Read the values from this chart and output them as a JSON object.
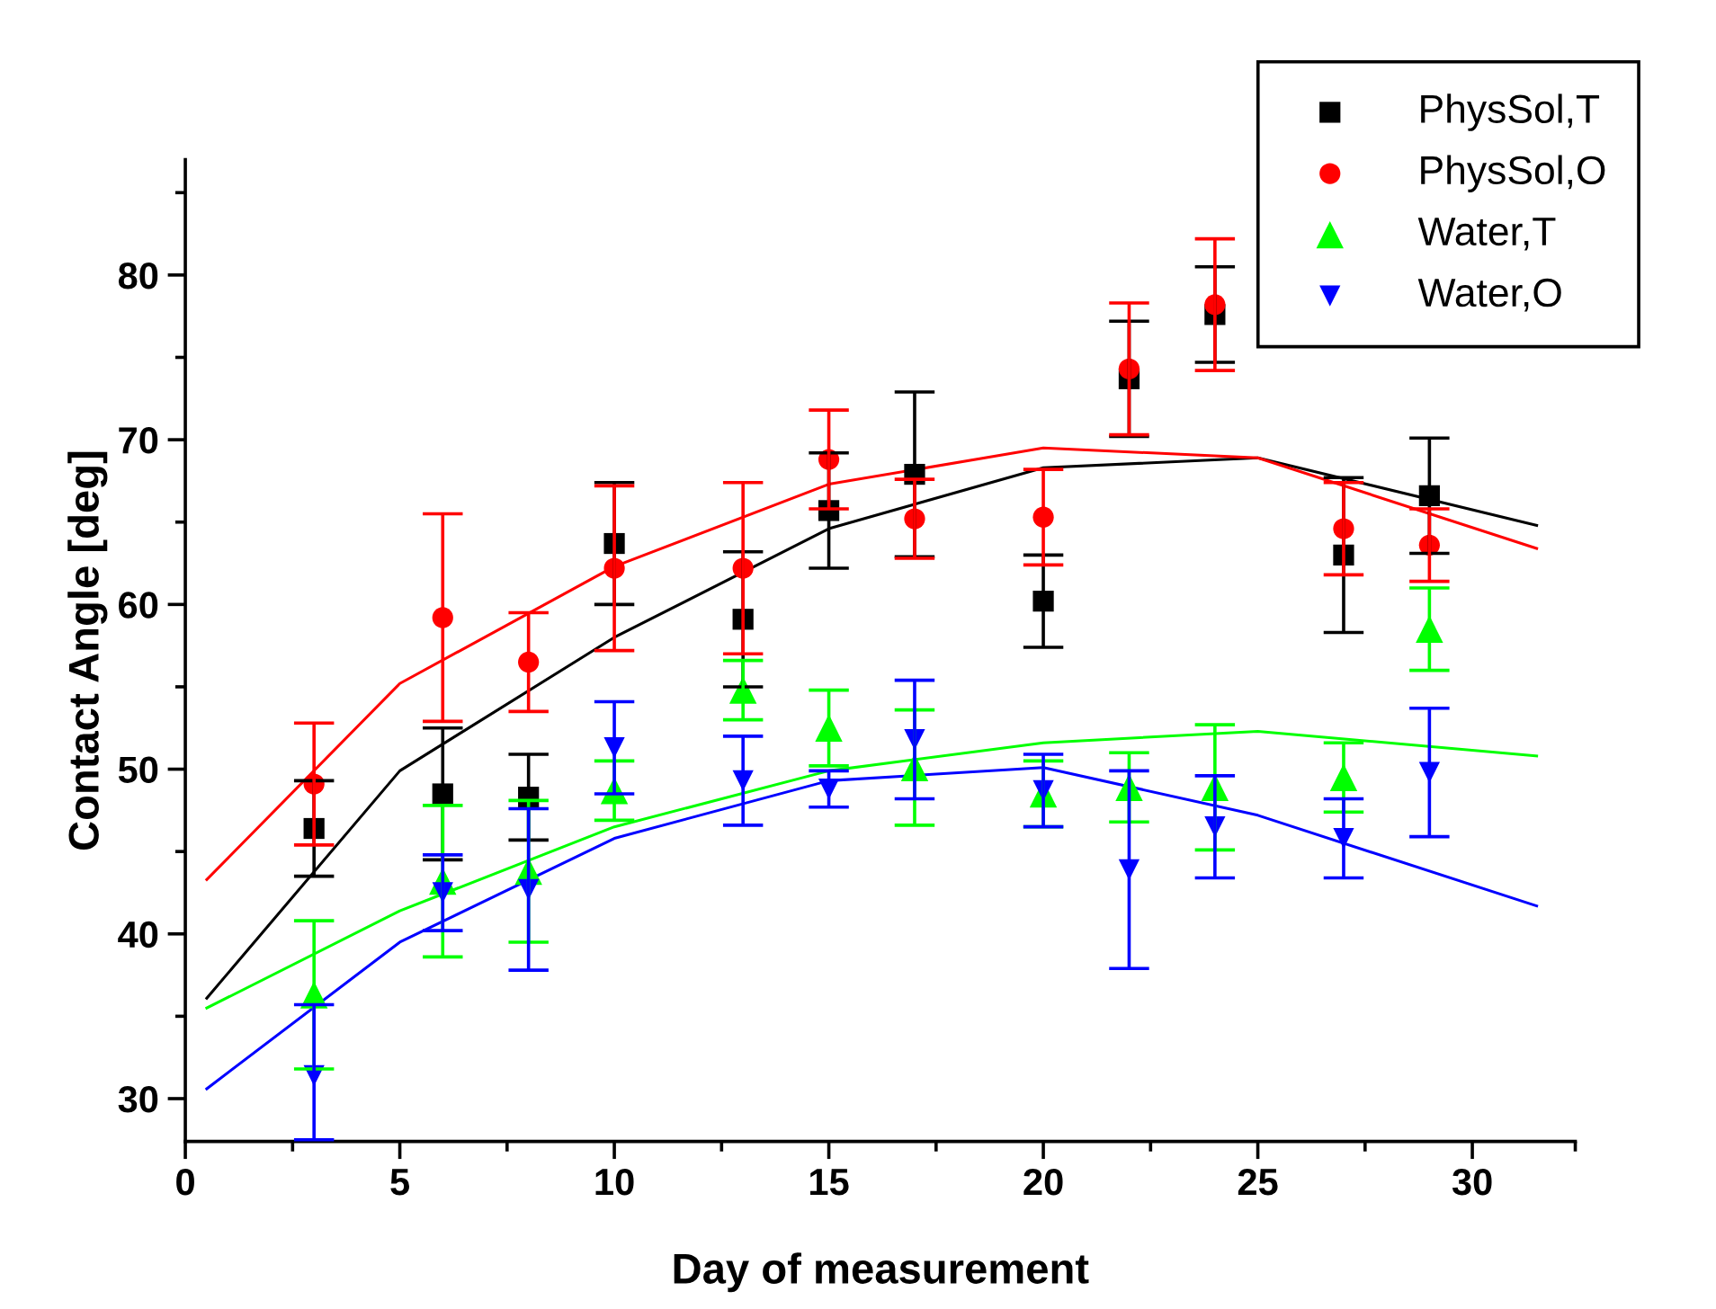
{
  "chart_data": {
    "type": "scatter",
    "xlabel": "Day of measurement",
    "ylabel": "Contact Angle [deg]",
    "xlim": [
      0,
      32.4
    ],
    "ylim": [
      27.4,
      87
    ],
    "xticks": [
      0,
      {
        "value": 2.5,
        "label": null
      },
      5,
      {
        "value": 7.5,
        "label": null
      },
      10,
      {
        "value": 12.5,
        "label": null
      },
      15,
      {
        "value": 17.5,
        "label": null
      },
      20,
      {
        "value": 22.5,
        "label": null
      },
      25,
      {
        "value": 27.5,
        "label": null
      },
      30,
      {
        "value": 32.4,
        "label": null
      }
    ],
    "yticks": [
      30,
      {
        "value": 35,
        "label": null
      },
      40,
      {
        "value": 45,
        "label": null
      },
      50,
      {
        "value": 55,
        "label": null
      },
      60,
      {
        "value": 65,
        "label": null
      },
      70,
      {
        "value": 75,
        "label": null
      },
      80,
      {
        "value": 85,
        "label": null
      }
    ],
    "grid": false,
    "legend": "top right",
    "series": [
      {
        "name": "PhysSol,T",
        "marker": "square",
        "color": "#000000",
        "x": [
          3,
          6,
          8,
          10,
          13,
          15,
          17,
          20,
          22,
          24,
          27,
          29
        ],
        "values": [
          46.4,
          48.5,
          48.3,
          63.7,
          59.1,
          65.7,
          67.9,
          60.2,
          73.7,
          77.6,
          63.0,
          66.6
        ],
        "errors": [
          2.9,
          4.0,
          2.6,
          3.7,
          4.1,
          3.5,
          5.0,
          2.8,
          3.5,
          2.9,
          4.7,
          3.5
        ]
      },
      {
        "name": "PhysSol,O",
        "marker": "circle",
        "color": "#ff0000",
        "x": [
          3,
          6,
          8,
          10,
          13,
          15,
          17,
          20,
          22,
          24,
          27,
          29
        ],
        "values": [
          49.1,
          59.2,
          56.5,
          62.2,
          62.2,
          68.8,
          65.2,
          65.3,
          74.3,
          78.2,
          64.6,
          63.6
        ],
        "errors": [
          3.7,
          6.3,
          3.0,
          5.0,
          5.2,
          3.0,
          2.4,
          2.9,
          4.0,
          4.0,
          2.8,
          2.2
        ]
      },
      {
        "name": "Water,T",
        "marker": "triangle",
        "color": "#00ff00",
        "x": [
          3,
          6,
          8,
          10,
          13,
          15,
          17,
          20,
          22,
          24,
          27,
          29
        ],
        "values": [
          36.3,
          43.2,
          43.8,
          48.7,
          54.8,
          52.5,
          50.1,
          48.5,
          48.9,
          48.9,
          49.5,
          58.5
        ],
        "errors": [
          4.5,
          4.6,
          4.3,
          1.8,
          1.8,
          2.3,
          3.5,
          2.0,
          2.1,
          3.8,
          2.1,
          2.5
        ]
      },
      {
        "name": "Water,O",
        "marker": "triangle_down",
        "color": "#0000ff",
        "x": [
          3,
          6,
          8,
          10,
          13,
          15,
          17,
          20,
          22,
          24,
          27,
          29
        ],
        "values": [
          31.4,
          42.5,
          42.7,
          51.3,
          49.3,
          48.8,
          51.8,
          48.7,
          43.9,
          46.5,
          45.8,
          49.8
        ],
        "errors": [
          [
            27.5,
            35.7
          ],
          2.3,
          4.9,
          2.8,
          2.7,
          1.1,
          3.6,
          2.2,
          6.0,
          3.1,
          2.4,
          3.9
        ]
      },
      {
        "type": "line",
        "marker": "none",
        "color": "#000000",
        "x": [
          0.5,
          5,
          10,
          15,
          20,
          25,
          31.5
        ],
        "values": [
          36.1,
          49.9,
          58.0,
          64.6,
          68.3,
          68.9,
          64.8
        ]
      },
      {
        "type": "line",
        "marker": "none",
        "color": "#ff0000",
        "x": [
          0.5,
          5,
          10,
          15,
          20,
          25,
          31.5
        ],
        "values": [
          43.3,
          55.2,
          62.3,
          67.3,
          69.5,
          68.9,
          63.4
        ]
      },
      {
        "type": "line",
        "marker": "none",
        "color": "#00ff00",
        "x": [
          0.5,
          5,
          10,
          15,
          20,
          25,
          31.5
        ],
        "values": [
          35.5,
          41.4,
          46.5,
          49.9,
          51.6,
          52.3,
          50.8
        ]
      },
      {
        "type": "line",
        "marker": "none",
        "color": "#0000ff",
        "x": [
          0.5,
          5,
          10,
          15,
          20,
          25,
          31.5
        ],
        "values": [
          30.6,
          39.5,
          45.8,
          49.3,
          50.1,
          47.2,
          41.7
        ]
      }
    ]
  }
}
